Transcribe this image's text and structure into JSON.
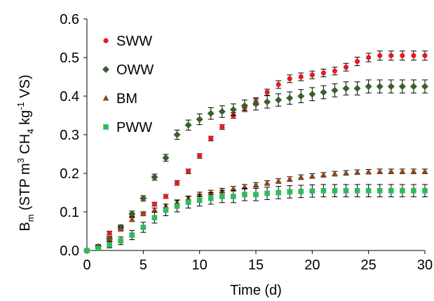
{
  "chart_data": {
    "type": "scatter",
    "xlabel": "Time (d)",
    "ylabel": {
      "parts": [
        "B",
        "m",
        " (STP m",
        "3",
        " CH",
        "4",
        " kg",
        "-1",
        " VS)"
      ]
    },
    "xlim": [
      0,
      30
    ],
    "ylim": [
      0,
      0.6
    ],
    "xticks": [
      "0",
      "5",
      "10",
      "15",
      "20",
      "25",
      "30"
    ],
    "yticks": [
      "0.0",
      "0.1",
      "0.2",
      "0.3",
      "0.4",
      "0.5",
      "0.6"
    ],
    "grid": false,
    "legend_position": "top-left",
    "series": [
      {
        "name": "SWW",
        "color": "#e8191f",
        "marker": "circle",
        "points": [
          [
            0,
            0
          ],
          [
            1,
            0.01
          ],
          [
            2,
            0.045
          ],
          [
            3,
            0.06
          ],
          [
            4,
            0.09
          ],
          [
            5,
            0.095
          ],
          [
            6,
            0.12
          ],
          [
            7,
            0.14
          ],
          [
            8,
            0.175
          ],
          [
            9,
            0.205
          ],
          [
            10,
            0.245
          ],
          [
            11,
            0.29
          ],
          [
            12,
            0.32
          ],
          [
            13,
            0.35
          ],
          [
            14,
            0.37
          ],
          [
            15,
            0.385
          ],
          [
            16,
            0.41
          ],
          [
            17,
            0.43
          ],
          [
            18,
            0.445
          ],
          [
            19,
            0.45
          ],
          [
            20,
            0.455
          ],
          [
            21,
            0.46
          ],
          [
            22,
            0.465
          ],
          [
            23,
            0.475
          ],
          [
            24,
            0.49
          ],
          [
            25,
            0.5
          ],
          [
            26,
            0.505
          ],
          [
            27,
            0.505
          ],
          [
            28,
            0.505
          ],
          [
            29,
            0.505
          ],
          [
            30,
            0.505
          ]
        ],
        "errors": [
          0,
          0.004,
          0.005,
          0.005,
          0.005,
          0.005,
          0.005,
          0.005,
          0.006,
          0.006,
          0.006,
          0.006,
          0.006,
          0.007,
          0.007,
          0.008,
          0.008,
          0.01,
          0.01,
          0.01,
          0.01,
          0.01,
          0.01,
          0.01,
          0.011,
          0.011,
          0.012,
          0.012,
          0.012,
          0.012,
          0.012
        ]
      },
      {
        "name": "OWW",
        "color": "#3a5f2b",
        "marker": "diamond",
        "points": [
          [
            0,
            0
          ],
          [
            1,
            0.01
          ],
          [
            2,
            0.03
          ],
          [
            3,
            0.06
          ],
          [
            4,
            0.095
          ],
          [
            5,
            0.135
          ],
          [
            6,
            0.19
          ],
          [
            7,
            0.24
          ],
          [
            8,
            0.3
          ],
          [
            9,
            0.325
          ],
          [
            10,
            0.34
          ],
          [
            11,
            0.355
          ],
          [
            12,
            0.36
          ],
          [
            13,
            0.365
          ],
          [
            14,
            0.375
          ],
          [
            15,
            0.38
          ],
          [
            16,
            0.385
          ],
          [
            17,
            0.39
          ],
          [
            18,
            0.395
          ],
          [
            19,
            0.4
          ],
          [
            20,
            0.405
          ],
          [
            21,
            0.41
          ],
          [
            22,
            0.415
          ],
          [
            23,
            0.42
          ],
          [
            24,
            0.42
          ],
          [
            25,
            0.425
          ],
          [
            26,
            0.425
          ],
          [
            27,
            0.425
          ],
          [
            28,
            0.425
          ],
          [
            29,
            0.425
          ],
          [
            30,
            0.425
          ]
        ],
        "errors": [
          0,
          0.005,
          0.006,
          0.006,
          0.007,
          0.007,
          0.008,
          0.009,
          0.012,
          0.013,
          0.014,
          0.015,
          0.015,
          0.015,
          0.015,
          0.016,
          0.016,
          0.016,
          0.016,
          0.017,
          0.017,
          0.017,
          0.017,
          0.017,
          0.017,
          0.017,
          0.017,
          0.017,
          0.017,
          0.017,
          0.017
        ]
      },
      {
        "name": "BM",
        "color": "#8b4a1c",
        "marker": "triangle",
        "points": [
          [
            0,
            0
          ],
          [
            1,
            0.01
          ],
          [
            2,
            0.03
          ],
          [
            3,
            0.055
          ],
          [
            4,
            0.08
          ],
          [
            5,
            0.095
          ],
          [
            6,
            0.105
          ],
          [
            7,
            0.115
          ],
          [
            8,
            0.125
          ],
          [
            9,
            0.135
          ],
          [
            10,
            0.145
          ],
          [
            11,
            0.15
          ],
          [
            12,
            0.155
          ],
          [
            13,
            0.16
          ],
          [
            14,
            0.165
          ],
          [
            15,
            0.17
          ],
          [
            16,
            0.175
          ],
          [
            17,
            0.18
          ],
          [
            18,
            0.185
          ],
          [
            19,
            0.19
          ],
          [
            20,
            0.193
          ],
          [
            21,
            0.196
          ],
          [
            22,
            0.199
          ],
          [
            23,
            0.201
          ],
          [
            24,
            0.203
          ],
          [
            25,
            0.204
          ],
          [
            26,
            0.205
          ],
          [
            27,
            0.205
          ],
          [
            28,
            0.205
          ],
          [
            29,
            0.205
          ],
          [
            30,
            0.205
          ]
        ],
        "errors": [
          0,
          0.004,
          0.005,
          0.005,
          0.005,
          0.005,
          0.005,
          0.005,
          0.006,
          0.006,
          0.006,
          0.006,
          0.006,
          0.006,
          0.006,
          0.006,
          0.006,
          0.006,
          0.006,
          0.006,
          0.006,
          0.006,
          0.006,
          0.006,
          0.006,
          0.006,
          0.006,
          0.006,
          0.006,
          0.006,
          0.006
        ]
      },
      {
        "name": "PWW",
        "color": "#2dbb5b",
        "marker": "square",
        "points": [
          [
            0,
            0
          ],
          [
            1,
            0.005
          ],
          [
            2,
            0.015
          ],
          [
            3,
            0.025
          ],
          [
            4,
            0.04
          ],
          [
            5,
            0.06
          ],
          [
            6,
            0.085
          ],
          [
            7,
            0.105
          ],
          [
            8,
            0.115
          ],
          [
            9,
            0.125
          ],
          [
            10,
            0.13
          ],
          [
            11,
            0.135
          ],
          [
            12,
            0.14
          ],
          [
            13,
            0.14
          ],
          [
            14,
            0.145
          ],
          [
            15,
            0.145
          ],
          [
            16,
            0.148
          ],
          [
            17,
            0.15
          ],
          [
            18,
            0.152
          ],
          [
            19,
            0.153
          ],
          [
            20,
            0.154
          ],
          [
            21,
            0.155
          ],
          [
            22,
            0.155
          ],
          [
            23,
            0.155
          ],
          [
            24,
            0.155
          ],
          [
            25,
            0.155
          ],
          [
            26,
            0.155
          ],
          [
            27,
            0.155
          ],
          [
            28,
            0.155
          ],
          [
            29,
            0.155
          ],
          [
            30,
            0.155
          ]
        ],
        "errors": [
          0,
          0.004,
          0.008,
          0.01,
          0.012,
          0.013,
          0.014,
          0.015,
          0.015,
          0.015,
          0.015,
          0.015,
          0.016,
          0.016,
          0.016,
          0.016,
          0.016,
          0.016,
          0.016,
          0.016,
          0.016,
          0.016,
          0.016,
          0.016,
          0.016,
          0.016,
          0.016,
          0.016,
          0.016,
          0.016,
          0.016
        ]
      }
    ]
  }
}
